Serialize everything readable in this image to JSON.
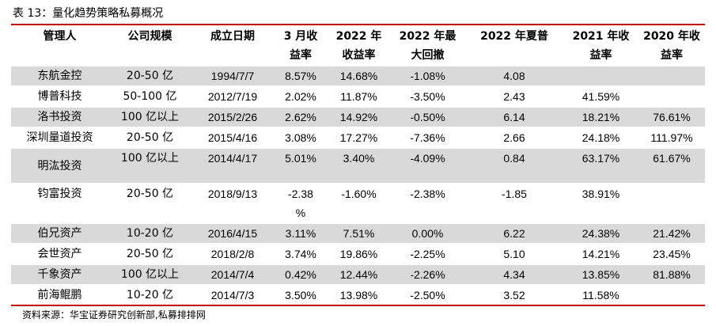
{
  "caption": "表 13：量化趋势策略私募概况",
  "headers": [
    [
      "管理人",
      ""
    ],
    [
      "公司规模",
      ""
    ],
    [
      "成立日期",
      ""
    ],
    [
      "3 月收",
      "益率"
    ],
    [
      "2022 年",
      "收益率"
    ],
    [
      "2022 年最",
      "大回撤"
    ],
    [
      "2022 年夏普",
      ""
    ],
    [
      "2021 年收",
      "益率"
    ],
    [
      "2020 年收",
      "益率"
    ]
  ],
  "rows": [
    [
      "东航金控",
      "20-50 亿",
      "1994/7/7",
      "8.57%",
      "14.68%",
      "-1.08%",
      "4.08",
      "",
      ""
    ],
    [
      "博普科技",
      "50-100 亿",
      "2012/7/19",
      "2.02%",
      "11.87%",
      "-3.50%",
      "2.43",
      "41.59%",
      ""
    ],
    [
      "洛书投资",
      "100 亿以上",
      "2015/2/26",
      "2.62%",
      "14.92%",
      "-0.50%",
      "6.14",
      "18.21%",
      "76.61%"
    ],
    [
      "深圳量道投资",
      "20-50 亿",
      "2015/4/16",
      "3.08%",
      "17.27%",
      "-7.36%",
      "2.66",
      "24.18%",
      "111.97%"
    ],
    [
      "明汯投资",
      "100 亿以上",
      "2014/4/17",
      "5.01%",
      "3.40%",
      "-4.09%",
      "0.84",
      "63.17%",
      "61.67%"
    ],
    [
      "钧富投资",
      "20-50 亿",
      "2018/9/13",
      "-2.38\n%",
      "-1.60%",
      "-2.38%",
      "-1.85",
      "38.91%",
      ""
    ],
    [
      "伯兄资产",
      "10-20 亿",
      "2016/4/15",
      "3.11%",
      "7.51%",
      "0.00%",
      "6.22",
      "24.38%",
      "21.42%"
    ],
    [
      "会世资产",
      "20-50 亿",
      "2018/2/8",
      "3.74%",
      "19.86%",
      "-2.25%",
      "5.10",
      "14.21%",
      "23.45%"
    ],
    [
      "千象资产",
      "100 亿以上",
      "2014/7/4",
      "0.42%",
      "12.44%",
      "-2.26%",
      "4.34",
      "13.85%",
      "81.88%"
    ],
    [
      "前海鲲鹏",
      "10-20 亿",
      "2014/7/3",
      "3.50%",
      "13.98%",
      "-2.50%",
      "3.52",
      "11.58%",
      ""
    ]
  ],
  "source": "资料来源：华宝证券研究创新部,私募排排网",
  "colors": {
    "accent": "#c00000",
    "shade": "#d9d9d9"
  }
}
